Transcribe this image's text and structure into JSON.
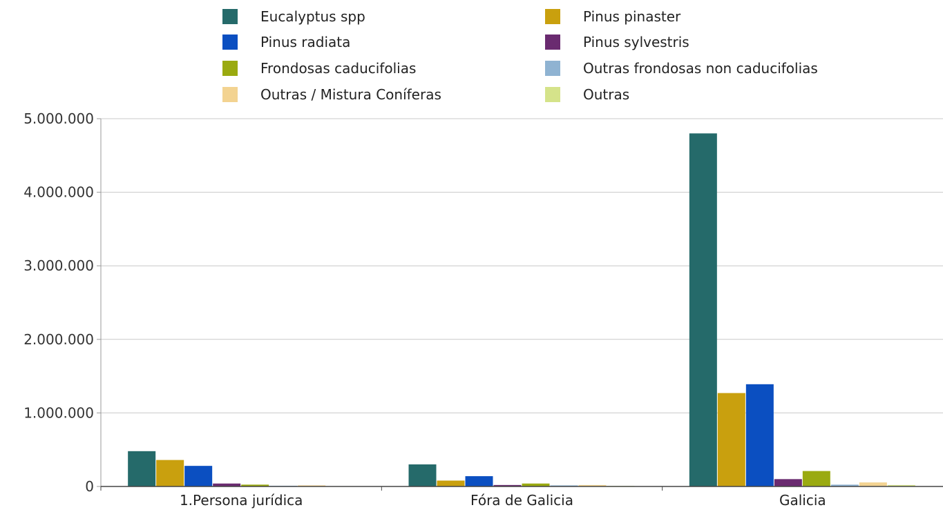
{
  "chart_data": {
    "type": "bar",
    "categories": [
      "1.Persona jurídica",
      "Fóra de Galicia",
      "Galicia"
    ],
    "series": [
      {
        "name": "Eucalyptus spp",
        "color": "#256a6a",
        "values": [
          480000,
          300000,
          4800000
        ]
      },
      {
        "name": "Pinus pinaster",
        "color": "#c9a00e",
        "values": [
          360000,
          80000,
          1270000
        ]
      },
      {
        "name": "Pinus radiata",
        "color": "#0b4fc1",
        "values": [
          280000,
          140000,
          1390000
        ]
      },
      {
        "name": "Pinus sylvestris",
        "color": "#6a2b70",
        "values": [
          40000,
          20000,
          100000
        ]
      },
      {
        "name": "Frondosas caducifolias",
        "color": "#9aaa10",
        "values": [
          25000,
          40000,
          210000
        ]
      },
      {
        "name": "Outras frondosas non caducifolias",
        "color": "#8fb3d2",
        "values": [
          10000,
          15000,
          25000
        ]
      },
      {
        "name": "Outras / Mistura Coníferas",
        "color": "#f3d391",
        "values": [
          15000,
          20000,
          55000
        ]
      },
      {
        "name": "Outras",
        "color": "#d5e38a",
        "values": [
          5000,
          8000,
          20000
        ]
      }
    ],
    "ylim": [
      0,
      5000000
    ],
    "yticks": [
      {
        "value": 0,
        "label": "0"
      },
      {
        "value": 1000000,
        "label": "1.000.000"
      },
      {
        "value": 2000000,
        "label": "2.000.000"
      },
      {
        "value": 3000000,
        "label": "3.000.000"
      },
      {
        "value": 4000000,
        "label": "4.000.000"
      },
      {
        "value": 5000000,
        "label": "5.000.000"
      }
    ],
    "grid": true,
    "legend_position": "top",
    "title": "",
    "xlabel": "",
    "ylabel": ""
  }
}
